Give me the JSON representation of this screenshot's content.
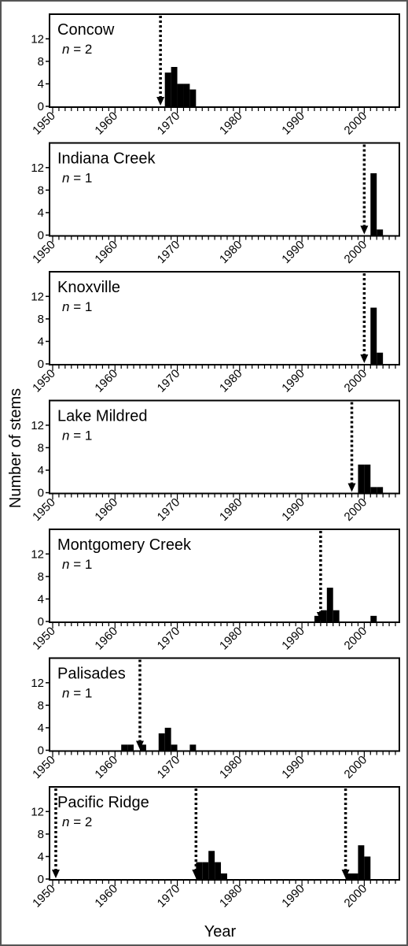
{
  "figure": {
    "ylabel": "Number of stems",
    "xlabel": "Year"
  },
  "chart_data": [
    {
      "type": "bar",
      "site": "Concow",
      "n_label": "= 2",
      "n": 2,
      "xlim": [
        1950,
        2005
      ],
      "ylim": [
        0,
        14
      ],
      "yticks": [
        0,
        4,
        8,
        12
      ],
      "xticks": [
        1950,
        1960,
        1970,
        1980,
        1990,
        2000
      ],
      "bars": [
        [
          1968,
          6
        ],
        [
          1969,
          7
        ],
        [
          1970,
          4
        ],
        [
          1971,
          4
        ],
        [
          1972,
          3
        ]
      ],
      "arrows": [
        1967.3
      ]
    },
    {
      "type": "bar",
      "site": "Indiana Creek",
      "n_label": "= 1",
      "n": 1,
      "xlim": [
        1950,
        2005
      ],
      "ylim": [
        0,
        14
      ],
      "yticks": [
        0,
        4,
        8,
        12
      ],
      "xticks": [
        1950,
        1960,
        1970,
        1980,
        1990,
        2000
      ],
      "bars": [
        [
          2001,
          11
        ],
        [
          2002,
          1
        ]
      ],
      "arrows": [
        2000
      ]
    },
    {
      "type": "bar",
      "site": "Knoxville",
      "n_label": "= 1",
      "n": 1,
      "xlim": [
        1950,
        2005
      ],
      "ylim": [
        0,
        14
      ],
      "yticks": [
        0,
        4,
        8,
        12
      ],
      "xticks": [
        1950,
        1960,
        1970,
        1980,
        1990,
        2000
      ],
      "bars": [
        [
          2001,
          10
        ],
        [
          2002,
          2
        ]
      ],
      "arrows": [
        2000
      ]
    },
    {
      "type": "bar",
      "site": "Lake Mildred",
      "n_label": "= 1",
      "n": 1,
      "xlim": [
        1950,
        2005
      ],
      "ylim": [
        0,
        14
      ],
      "yticks": [
        0,
        4,
        8,
        12
      ],
      "xticks": [
        1950,
        1960,
        1970,
        1980,
        1990,
        2000
      ],
      "bars": [
        [
          1999,
          5
        ],
        [
          2000,
          5
        ],
        [
          2001,
          1
        ],
        [
          2002,
          1
        ]
      ],
      "arrows": [
        1998
      ]
    },
    {
      "type": "bar",
      "site": "Montgomery Creek",
      "n_label": "= 1",
      "n": 1,
      "xlim": [
        1950,
        2005
      ],
      "ylim": [
        0,
        14
      ],
      "yticks": [
        0,
        4,
        8,
        12
      ],
      "xticks": [
        1950,
        1960,
        1970,
        1980,
        1990,
        2000
      ],
      "bars": [
        [
          1992,
          1
        ],
        [
          1993,
          2
        ],
        [
          1994,
          6
        ],
        [
          1995,
          2
        ],
        [
          2001,
          1
        ]
      ],
      "arrows": [
        1993
      ]
    },
    {
      "type": "bar",
      "site": "Palisades",
      "n_label": "= 1",
      "n": 1,
      "xlim": [
        1950,
        2005
      ],
      "ylim": [
        0,
        14
      ],
      "yticks": [
        0,
        4,
        8,
        12
      ],
      "xticks": [
        1950,
        1960,
        1970,
        1980,
        1990,
        2000
      ],
      "bars": [
        [
          1961,
          1
        ],
        [
          1962,
          1
        ],
        [
          1964,
          1
        ],
        [
          1967,
          3
        ],
        [
          1968,
          4
        ],
        [
          1969,
          1
        ],
        [
          1972,
          1
        ]
      ],
      "arrows": [
        1964
      ]
    },
    {
      "type": "bar",
      "site": "Pacific Ridge",
      "n_label": "= 2",
      "n": 2,
      "xlim": [
        1950,
        2005
      ],
      "ylim": [
        0,
        14
      ],
      "yticks": [
        0,
        4,
        8,
        12
      ],
      "xticks": [
        1950,
        1960,
        1970,
        1980,
        1990,
        2000
      ],
      "bars": [
        [
          1973,
          3
        ],
        [
          1974,
          3
        ],
        [
          1975,
          5
        ],
        [
          1976,
          3
        ],
        [
          1977,
          1
        ],
        [
          1997,
          1
        ],
        [
          1998,
          1
        ],
        [
          1999,
          6
        ],
        [
          2000,
          4
        ]
      ],
      "arrows": [
        1950.5,
        1973,
        1997
      ]
    }
  ]
}
